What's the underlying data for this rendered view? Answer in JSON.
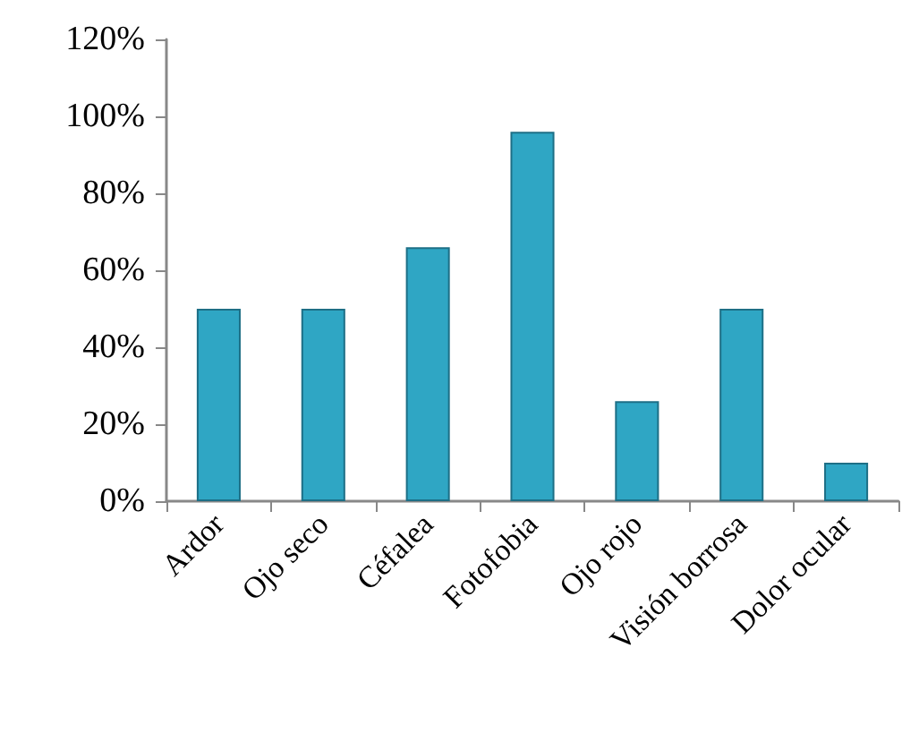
{
  "chart_data": {
    "type": "bar",
    "categories": [
      "Ardor",
      "Ojo seco",
      "Céfalea",
      "Fotofobia",
      "Ojo rojo",
      "Visión borrosa",
      "Dolor ocular"
    ],
    "values": [
      50,
      50,
      66,
      96,
      26,
      50,
      10
    ],
    "color": "#2fa6c4",
    "ylim": [
      0,
      120
    ],
    "yticks": [
      {
        "value": 0,
        "label": "0%"
      },
      {
        "value": 20,
        "label": "20%"
      },
      {
        "value": 40,
        "label": "40%"
      },
      {
        "value": 60,
        "label": "60%"
      },
      {
        "value": 80,
        "label": "80%"
      },
      {
        "value": 100,
        "label": "100%"
      },
      {
        "value": 120,
        "label": "120%"
      }
    ],
    "grid": false
  }
}
